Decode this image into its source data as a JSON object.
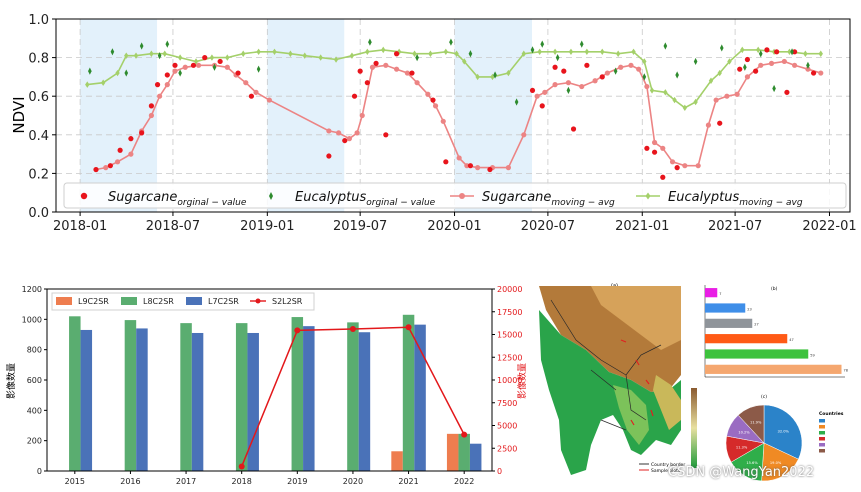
{
  "watermark": "CSDN @WangYan2022",
  "chart_data": [
    {
      "type": "line",
      "ylabel": "NDVI",
      "xlabel": "",
      "ylim": [
        0.0,
        1.0
      ],
      "xlim": [
        "2017-11-15",
        "2022-02-10"
      ],
      "x_tick_labels": [
        "2018-01",
        "2018-07",
        "2019-01",
        "2019-07",
        "2020-01",
        "2020-07",
        "2021-01",
        "2021-07",
        "2022-01"
      ],
      "y_tick_labels": [
        "0.0",
        "0.2",
        "0.4",
        "0.6",
        "0.8",
        "1.0"
      ],
      "grid": true,
      "legend_position": "bottom",
      "shaded_periods": [
        [
          "2018-01-01",
          "2018-05-31"
        ],
        [
          "2019-01-01",
          "2019-05-31"
        ],
        [
          "2020-01-01",
          "2020-05-31"
        ]
      ],
      "colors": {
        "sugar_point": "#e8141c",
        "sugar_line": "#ec8484",
        "euc_point": "#2e8b2e",
        "euc_line": "#a4d06a",
        "shade": "#e3f1fb"
      },
      "legend": [
        {
          "base": "Sugarcane",
          "sub": "orginal − value"
        },
        {
          "base": "Eucalyptus",
          "sub": "orginal − value"
        },
        {
          "base": "Sugarcane",
          "sub": "moving − avg"
        },
        {
          "base": "Eucalyptus",
          "sub": "moving − avg"
        }
      ],
      "series": [
        {
          "name": "Sugarcane orginal-value",
          "x": [
            "2018-02-01",
            "2018-03-01",
            "2018-03-20",
            "2018-04-10",
            "2018-05-01",
            "2018-05-20",
            "2018-06-01",
            "2018-06-20",
            "2018-07-05",
            "2018-08-10",
            "2018-09-01",
            "2018-10-01",
            "2018-11-05",
            "2018-12-01",
            "2019-05-01",
            "2019-06-01",
            "2019-06-20",
            "2019-07-01",
            "2019-07-15",
            "2019-08-01",
            "2019-08-20",
            "2019-09-10",
            "2019-10-10",
            "2019-11-20",
            "2019-12-15",
            "2020-02-01",
            "2020-03-10",
            "2020-06-01",
            "2020-06-20",
            "2020-07-15",
            "2020-08-01",
            "2020-08-20",
            "2020-09-15",
            "2020-10-15",
            "2021-01-10",
            "2021-01-25",
            "2021-02-10",
            "2021-03-10",
            "2021-06-01",
            "2021-07-10",
            "2021-07-25",
            "2021-08-10",
            "2021-09-01",
            "2021-09-20",
            "2021-10-10",
            "2021-10-25",
            "2021-12-01"
          ],
          "values": [
            0.22,
            0.24,
            0.32,
            0.38,
            0.41,
            0.55,
            0.66,
            0.71,
            0.76,
            0.76,
            0.8,
            0.78,
            0.72,
            0.6,
            0.29,
            0.37,
            0.6,
            0.73,
            0.67,
            0.77,
            0.4,
            0.82,
            0.72,
            0.58,
            0.26,
            0.24,
            0.22,
            0.63,
            0.55,
            0.75,
            0.73,
            0.43,
            0.76,
            0.7,
            0.33,
            0.31,
            0.18,
            0.23,
            0.46,
            0.74,
            0.79,
            0.73,
            0.84,
            0.83,
            0.62,
            0.83,
            0.72
          ]
        },
        {
          "name": "Eucalyptus orginal-value",
          "x": [
            "2018-01-20",
            "2018-03-05",
            "2018-04-01",
            "2018-05-01",
            "2018-06-05",
            "2018-06-20",
            "2018-07-15",
            "2018-09-20",
            "2018-12-15",
            "2019-07-20",
            "2019-10-20",
            "2019-12-25",
            "2020-02-01",
            "2020-03-20",
            "2020-05-01",
            "2020-06-01",
            "2020-06-20",
            "2020-07-20",
            "2020-08-10",
            "2020-09-05",
            "2020-11-10",
            "2021-01-05",
            "2021-02-15",
            "2021-03-10",
            "2021-04-15",
            "2021-06-05",
            "2021-07-20",
            "2021-08-20",
            "2021-09-15",
            "2021-10-20",
            "2021-11-20"
          ],
          "values": [
            0.73,
            0.83,
            0.72,
            0.86,
            0.81,
            0.87,
            0.72,
            0.75,
            0.74,
            0.88,
            0.8,
            0.88,
            0.82,
            0.71,
            0.57,
            0.84,
            0.87,
            0.8,
            0.63,
            0.87,
            0.73,
            0.7,
            0.86,
            0.71,
            0.78,
            0.85,
            0.75,
            0.82,
            0.64,
            0.83,
            0.76
          ]
        },
        {
          "name": "Sugarcane moving-avg",
          "x": [
            "2018-02-01",
            "2018-02-20",
            "2018-03-15",
            "2018-04-10",
            "2018-05-01",
            "2018-05-20",
            "2018-06-05",
            "2018-06-20",
            "2018-07-05",
            "2018-07-25",
            "2018-08-20",
            "2018-09-20",
            "2018-10-15",
            "2018-11-01",
            "2018-11-20",
            "2018-12-10",
            "2019-01-05",
            "2019-05-01",
            "2019-05-20",
            "2019-06-10",
            "2019-06-25",
            "2019-07-05",
            "2019-07-25",
            "2019-08-20",
            "2019-09-10",
            "2019-10-01",
            "2019-10-20",
            "2019-11-10",
            "2019-11-25",
            "2019-12-10",
            "2020-01-10",
            "2020-01-25",
            "2020-02-15",
            "2020-03-15",
            "2020-04-15",
            "2020-05-15",
            "2020-06-10",
            "2020-06-25",
            "2020-07-15",
            "2020-08-10",
            "2020-09-05",
            "2020-10-01",
            "2020-10-25",
            "2020-11-20",
            "2020-12-10",
            "2020-12-25",
            "2021-01-10",
            "2021-01-25",
            "2021-02-10",
            "2021-03-01",
            "2021-03-25",
            "2021-04-20",
            "2021-05-10",
            "2021-05-25",
            "2021-06-15",
            "2021-07-05",
            "2021-07-25",
            "2021-08-20",
            "2021-09-10",
            "2021-10-05",
            "2021-10-25",
            "2021-11-20",
            "2021-12-15"
          ],
          "values": [
            0.22,
            0.23,
            0.26,
            0.3,
            0.42,
            0.5,
            0.6,
            0.66,
            0.73,
            0.75,
            0.76,
            0.76,
            0.75,
            0.71,
            0.67,
            0.62,
            0.58,
            0.42,
            0.41,
            0.38,
            0.41,
            0.5,
            0.75,
            0.76,
            0.74,
            0.72,
            0.67,
            0.61,
            0.55,
            0.47,
            0.28,
            0.24,
            0.23,
            0.23,
            0.23,
            0.4,
            0.6,
            0.62,
            0.66,
            0.67,
            0.65,
            0.68,
            0.72,
            0.75,
            0.76,
            0.74,
            0.65,
            0.36,
            0.33,
            0.26,
            0.24,
            0.24,
            0.45,
            0.58,
            0.6,
            0.61,
            0.7,
            0.76,
            0.77,
            0.78,
            0.76,
            0.74,
            0.72
          ]
        },
        {
          "name": "Eucalyptus moving-avg",
          "x": [
            "2018-01-15",
            "2018-02-15",
            "2018-03-15",
            "2018-04-01",
            "2018-04-20",
            "2018-05-20",
            "2018-06-15",
            "2018-07-15",
            "2018-08-15",
            "2018-09-15",
            "2018-10-15",
            "2018-11-15",
            "2018-12-15",
            "2019-01-15",
            "2019-02-15",
            "2019-03-15",
            "2019-04-15",
            "2019-05-15",
            "2019-06-15",
            "2019-07-15",
            "2019-08-15",
            "2019-09-15",
            "2019-10-15",
            "2019-11-15",
            "2019-12-15",
            "2020-01-05",
            "2020-01-20",
            "2020-02-15",
            "2020-03-15",
            "2020-04-15",
            "2020-05-15",
            "2020-06-15",
            "2020-07-15",
            "2020-08-15",
            "2020-09-15",
            "2020-10-15",
            "2020-11-15",
            "2020-12-15",
            "2021-01-05",
            "2021-01-20",
            "2021-02-15",
            "2021-03-05",
            "2021-03-25",
            "2021-04-15",
            "2021-05-15",
            "2021-06-01",
            "2021-06-20",
            "2021-07-15",
            "2021-08-15",
            "2021-09-15",
            "2021-10-15",
            "2021-11-15",
            "2021-12-15"
          ],
          "values": [
            0.66,
            0.67,
            0.72,
            0.81,
            0.81,
            0.82,
            0.82,
            0.8,
            0.78,
            0.8,
            0.8,
            0.82,
            0.83,
            0.83,
            0.82,
            0.81,
            0.8,
            0.79,
            0.81,
            0.83,
            0.84,
            0.83,
            0.82,
            0.82,
            0.83,
            0.82,
            0.78,
            0.7,
            0.7,
            0.72,
            0.82,
            0.83,
            0.83,
            0.83,
            0.83,
            0.83,
            0.82,
            0.83,
            0.78,
            0.63,
            0.62,
            0.58,
            0.54,
            0.57,
            0.68,
            0.72,
            0.78,
            0.84,
            0.84,
            0.83,
            0.83,
            0.82,
            0.82
          ]
        }
      ]
    },
    {
      "type": "bar",
      "ylabel": "影像数量",
      "y2label": "影像数量",
      "xlabel": "",
      "categories": [
        "2015",
        "2016",
        "2017",
        "2018",
        "2019",
        "2020",
        "2021",
        "2022"
      ],
      "ylim": [
        0,
        1200
      ],
      "y2lim": [
        0,
        20000
      ],
      "y_tick_labels": [
        "0",
        "200",
        "400",
        "600",
        "800",
        "1000",
        "1200"
      ],
      "y2_tick_labels": [
        "0",
        "2500",
        "5000",
        "7500",
        "10000",
        "12500",
        "15000",
        "17500",
        "20000"
      ],
      "grid": false,
      "legend_position": "top-left",
      "colors": {
        "L9C2SR": "#ee7d4f",
        "L8C2SR": "#5aad70",
        "L7C2SR": "#4a72b8",
        "S2L2SR": "#e3181b"
      },
      "series": [
        {
          "name": "L9C2SR",
          "values": [
            0,
            0,
            0,
            0,
            0,
            0,
            130,
            245
          ]
        },
        {
          "name": "L8C2SR",
          "values": [
            1020,
            995,
            975,
            975,
            1015,
            980,
            1030,
            245
          ]
        },
        {
          "name": "L7C2SR",
          "values": [
            930,
            940,
            910,
            910,
            955,
            915,
            965,
            180
          ]
        },
        {
          "name": "S2L2SR",
          "axis": "right",
          "type": "line",
          "values": [
            null,
            null,
            null,
            500,
            15450,
            15600,
            15800,
            4000
          ]
        }
      ]
    },
    {
      "type": "bar",
      "panel_label": "(b)",
      "orientation": "horizontal",
      "values": [
        7,
        23,
        27,
        47,
        59,
        78
      ],
      "colors": [
        "#e91ee5",
        "#3f8ee8",
        "#8f949a",
        "#ff5a16",
        "#3dc23d",
        "#f5a76f"
      ],
      "xlim": [
        0,
        80
      ]
    },
    {
      "type": "pie",
      "panel_label": "(c)",
      "legend_title": "Countries",
      "values": [
        32.0,
        19.0,
        15.6,
        11.3,
        10.2,
        11.9
      ],
      "colors": [
        "#2b83c9",
        "#f08a24",
        "#2fae4a",
        "#d52a2a",
        "#9a6cc2",
        "#8c5a48"
      ],
      "legend_position": "right"
    },
    {
      "type": "map",
      "panel_label": "(a)",
      "legend": [
        "Country border",
        "Sample plots"
      ],
      "colors": {
        "lowland": "#1e9a3a",
        "mid": "#d8c25a",
        "high": "#9a5a2a",
        "sea": "#ffffff"
      }
    }
  ]
}
